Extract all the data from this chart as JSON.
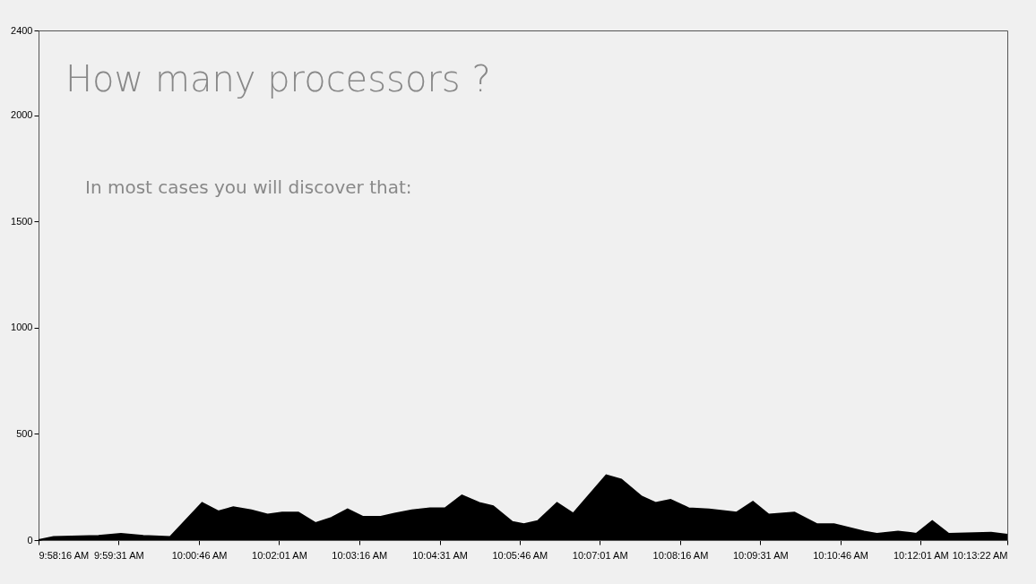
{
  "chart_data": {
    "type": "area",
    "title": "How many processors ?",
    "subtitle": "In most cases you will discover that:",
    "x": [
      9.9711,
      9.975,
      9.9867,
      9.9925,
      9.9983,
      10.0053,
      10.0136,
      10.0178,
      10.0217,
      10.0264,
      10.0306,
      10.0344,
      10.0386,
      10.0431,
      10.0472,
      10.0514,
      10.0553,
      10.06,
      10.0636,
      10.0681,
      10.0728,
      10.0767,
      10.0811,
      10.0856,
      10.0892,
      10.0942,
      10.0972,
      10.1008,
      10.1058,
      10.11,
      10.1186,
      10.1225,
      10.1278,
      10.1314,
      10.1353,
      10.14,
      10.1453,
      10.1525,
      10.1567,
      10.1608,
      10.1675,
      10.1733,
      10.1778,
      10.1856,
      10.1889,
      10.1944,
      10.1992,
      10.2033,
      10.2075,
      10.2186,
      10.2228
    ],
    "series": [
      {
        "color": "#000000",
        "values": [
          0,
          15,
          20,
          30,
          20,
          15,
          175,
          135,
          155,
          140,
          120,
          130,
          130,
          80,
          105,
          145,
          110,
          110,
          125,
          140,
          150,
          150,
          210,
          175,
          160,
          85,
          75,
          90,
          175,
          125,
          305,
          285,
          205,
          175,
          190,
          150,
          145,
          130,
          180,
          120,
          130,
          75,
          75,
          40,
          30,
          40,
          30,
          90,
          30,
          35,
          25
        ]
      }
    ],
    "xlim": [
      9.9711,
      10.2228
    ],
    "xticks": [
      {
        "value": 9.9711,
        "label": "9:58:16 AM"
      },
      {
        "value": 9.9919,
        "label": "9:59:31 AM"
      },
      {
        "value": 10.0128,
        "label": "10:00:46 AM"
      },
      {
        "value": 10.0336,
        "label": "10:02:01 AM"
      },
      {
        "value": 10.0544,
        "label": "10:03:16 AM"
      },
      {
        "value": 10.0753,
        "label": "10:04:31 AM"
      },
      {
        "value": 10.0961,
        "label": "10:05:46 AM"
      },
      {
        "value": 10.1169,
        "label": "10:07:01 AM"
      },
      {
        "value": 10.1378,
        "label": "10:08:16 AM"
      },
      {
        "value": 10.1586,
        "label": "10:09:31 AM"
      },
      {
        "value": 10.1794,
        "label": "10:10:46 AM"
      },
      {
        "value": 10.2003,
        "label": "10:12:01 AM"
      },
      {
        "value": 10.2228,
        "label": "10:13:22 AM"
      }
    ],
    "ylim": [
      0,
      2400
    ],
    "yticks": [
      0,
      500,
      1000,
      1500,
      2000,
      2400
    ],
    "grid": false,
    "legend": false
  }
}
